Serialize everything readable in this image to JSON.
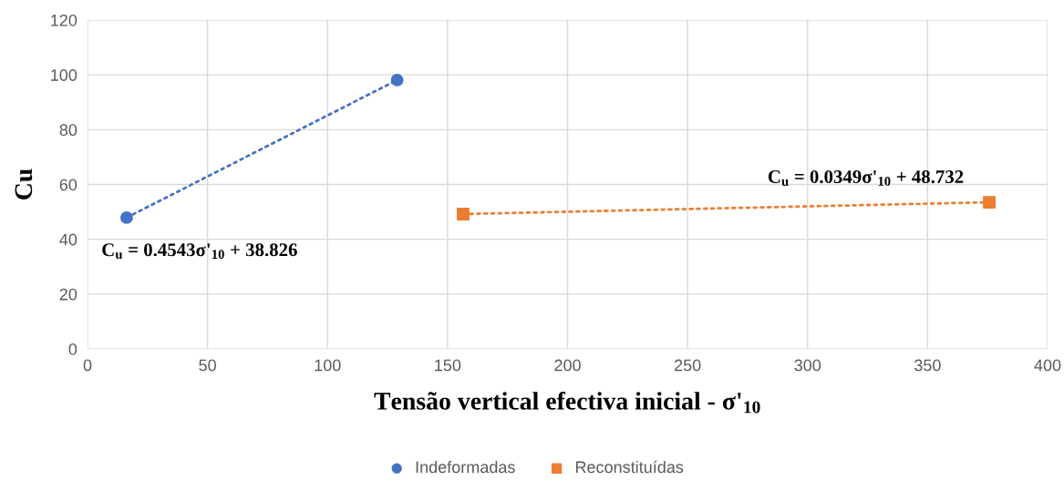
{
  "chart_data": {
    "type": "scatter",
    "xlabel": "Tensão vertical efectiva inicial - σ'$_{10}$",
    "ylabel": "Cu",
    "xlim": [
      0,
      400
    ],
    "xticks": [
      0,
      50,
      100,
      150,
      200,
      250,
      300,
      350,
      400
    ],
    "ylim": [
      0,
      120
    ],
    "yticks": [
      0,
      20,
      40,
      60,
      80,
      100,
      120
    ],
    "grid": true,
    "legend": "bottom",
    "series": [
      {
        "type": "line",
        "x": [
          16.3,
          129
        ],
        "values": [
          47.9,
          98.1
        ],
        "color": "#4472c4",
        "line_style": "dotted",
        "marker": "none"
      },
      {
        "type": "line",
        "x": [
          156.5,
          375.7
        ],
        "values": [
          49.2,
          53.5
        ],
        "color": "#ed7d31",
        "line_style": "dotted",
        "marker": "none"
      },
      {
        "name": "Indeformadas",
        "x": [
          16.3,
          129
        ],
        "values": [
          47.9,
          98.1
        ],
        "color": "#4472c4",
        "marker": "circle"
      },
      {
        "name": "Reconstituídas",
        "x": [
          156.5,
          375.7
        ],
        "values": [
          49.2,
          53.5
        ],
        "color": "#ed7d31",
        "marker": "square"
      }
    ],
    "annotations": [
      "C$_{u}$ = 0.4543σ'$_{10}$ + 38.826",
      "C$_{u}$ = 0.0349σ'$_{10}$ + 48.732"
    ]
  }
}
